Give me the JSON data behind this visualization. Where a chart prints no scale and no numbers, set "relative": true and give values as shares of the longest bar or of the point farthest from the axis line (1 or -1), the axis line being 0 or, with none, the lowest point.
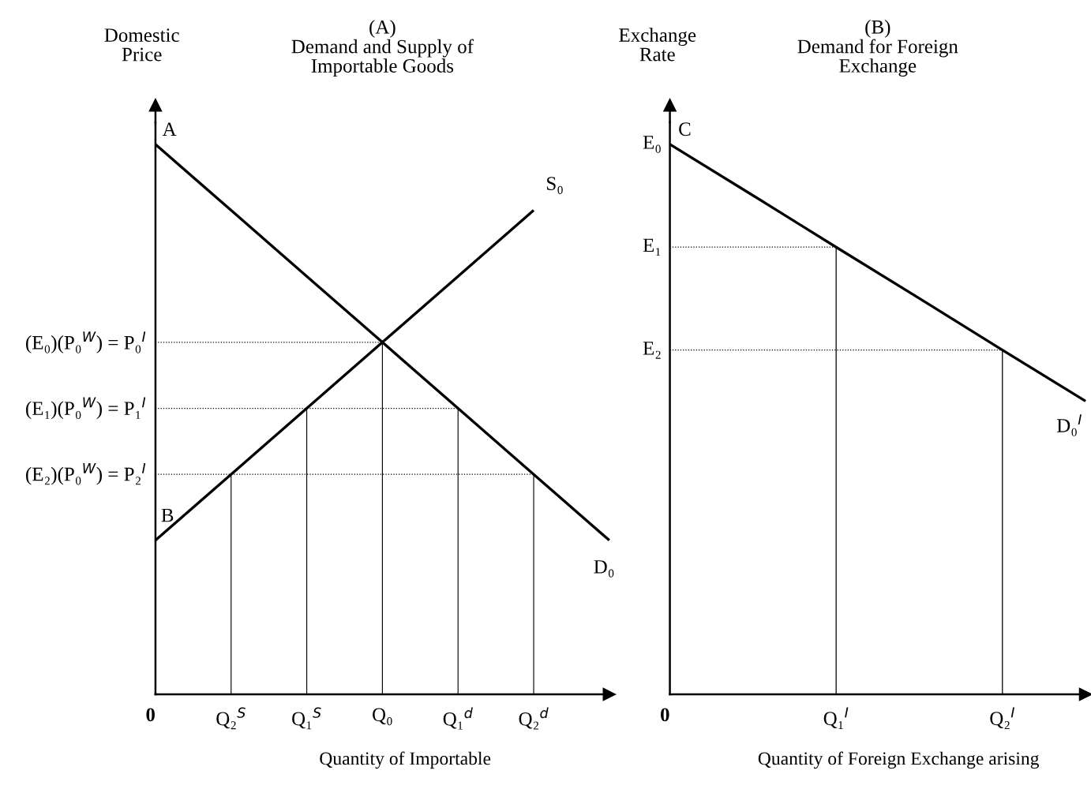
{
  "chart_data": [
    {
      "type": "line",
      "relative": true,
      "title": "(A)\nDemand and Supply of\nImportable Goods",
      "ylabel": "Domestic\nPrice",
      "xlabel": "Quantity of Importable",
      "categories": [
        "0",
        "Q₂$^{S}$",
        "Q₁$^{S}$",
        "Q₀",
        "Q₁$^{d}$",
        "Q₂$^{d}$",
        null
      ],
      "tick_labels": "x",
      "series": [
        {
          "values": [
            1.0,
            0.88,
            0.76,
            0.64,
            0.52,
            0.4,
            0.28
          ],
          "color": "#000000"
        },
        {
          "values": [
            0.28,
            0.4,
            0.52,
            0.64,
            0.76,
            0.88,
            null
          ],
          "color": "#000000"
        },
        {
          "values": [
            0.64,
            0.64,
            0.64,
            0.64,
            null,
            null,
            null
          ],
          "color": "#000000",
          "line_style": "dotted"
        },
        {
          "values": [
            0.52,
            0.52,
            0.52,
            0.52,
            0.52,
            null,
            null
          ],
          "color": "#000000",
          "line_style": "dotted"
        },
        {
          "values": [
            0.4,
            0.4,
            0.4,
            0.4,
            0.4,
            0.4,
            null
          ],
          "color": "#000000",
          "line_style": "dotted"
        },
        {
          "type": "bar",
          "values": [
            null,
            0.4,
            0.52,
            0.64,
            0.52,
            0.4,
            null
          ],
          "color": "#000000"
        }
      ],
      "annotations": [
        "A",
        "B",
        "S₀",
        "D₀",
        "(E₀)(P₀$^{W}$) = P₀$^{I}$",
        "(E₁)(P₀$^{W}$) = P₁$^{I}$",
        "(E₂)(P₀$^{W}$) = P₂$^{I}$"
      ]
    },
    {
      "type": "line",
      "relative": true,
      "title": "(B)\nDemand for Foreign\nExchange",
      "ylabel": "Exchange\nRate",
      "xlabel": "Quantity of Foreign Exchange arising",
      "categories": [
        "0",
        null,
        "Q₁$^{I}$",
        null,
        "Q₂$^{I}$",
        null
      ],
      "tick_labels": "x",
      "series": [
        {
          "values": [
            1.0,
            0.907,
            0.813,
            0.72,
            0.626,
            0.533
          ],
          "color": "#000000"
        },
        {
          "values": [
            0.813,
            0.813,
            0.813,
            null,
            null,
            null
          ],
          "color": "#000000",
          "line_style": "dotted"
        },
        {
          "values": [
            0.626,
            0.626,
            0.626,
            0.626,
            0.626,
            null
          ],
          "color": "#000000",
          "line_style": "dotted"
        },
        {
          "type": "bar",
          "values": [
            null,
            null,
            0.813,
            null,
            0.626,
            null
          ],
          "color": "#000000"
        }
      ],
      "annotations": [
        "C",
        "D₀$^{I}$",
        "E₀",
        "E₁",
        "E₂"
      ]
    }
  ]
}
